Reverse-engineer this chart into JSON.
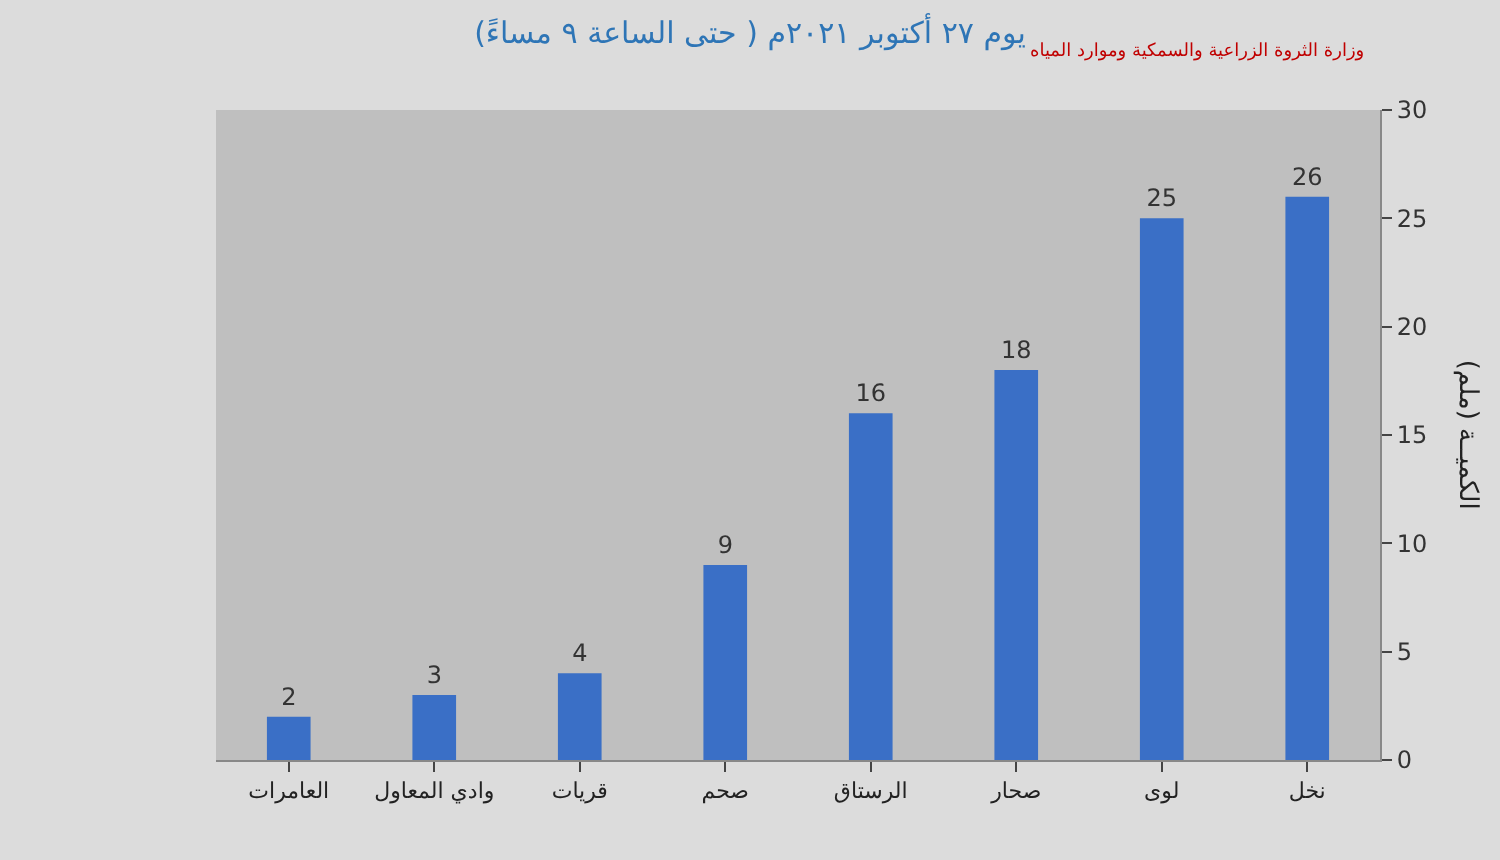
{
  "chart_data": {
    "type": "bar",
    "title": "يوم ٢٧ أكتوبر ٢٠٢١م ( حتى الساعة ٩ مساءً)",
    "ylabel": "الكميــة (ملم)",
    "categories": [
      "العامرات",
      "وادي المعاول",
      "قريات",
      "صحم",
      "الرستاق",
      "صحار",
      "لوى",
      "نخل"
    ],
    "values": [
      2,
      3,
      4,
      9,
      16,
      18,
      25,
      26
    ],
    "color": "#3a6fc6",
    "ylim": [
      0,
      30
    ],
    "yticks": [
      0,
      5,
      10,
      15,
      20,
      25,
      30
    ],
    "data_labels": true,
    "grid": false,
    "annotations": [
      "وزارة الثروة الزراعية والسمكية وموارد المياه"
    ]
  }
}
